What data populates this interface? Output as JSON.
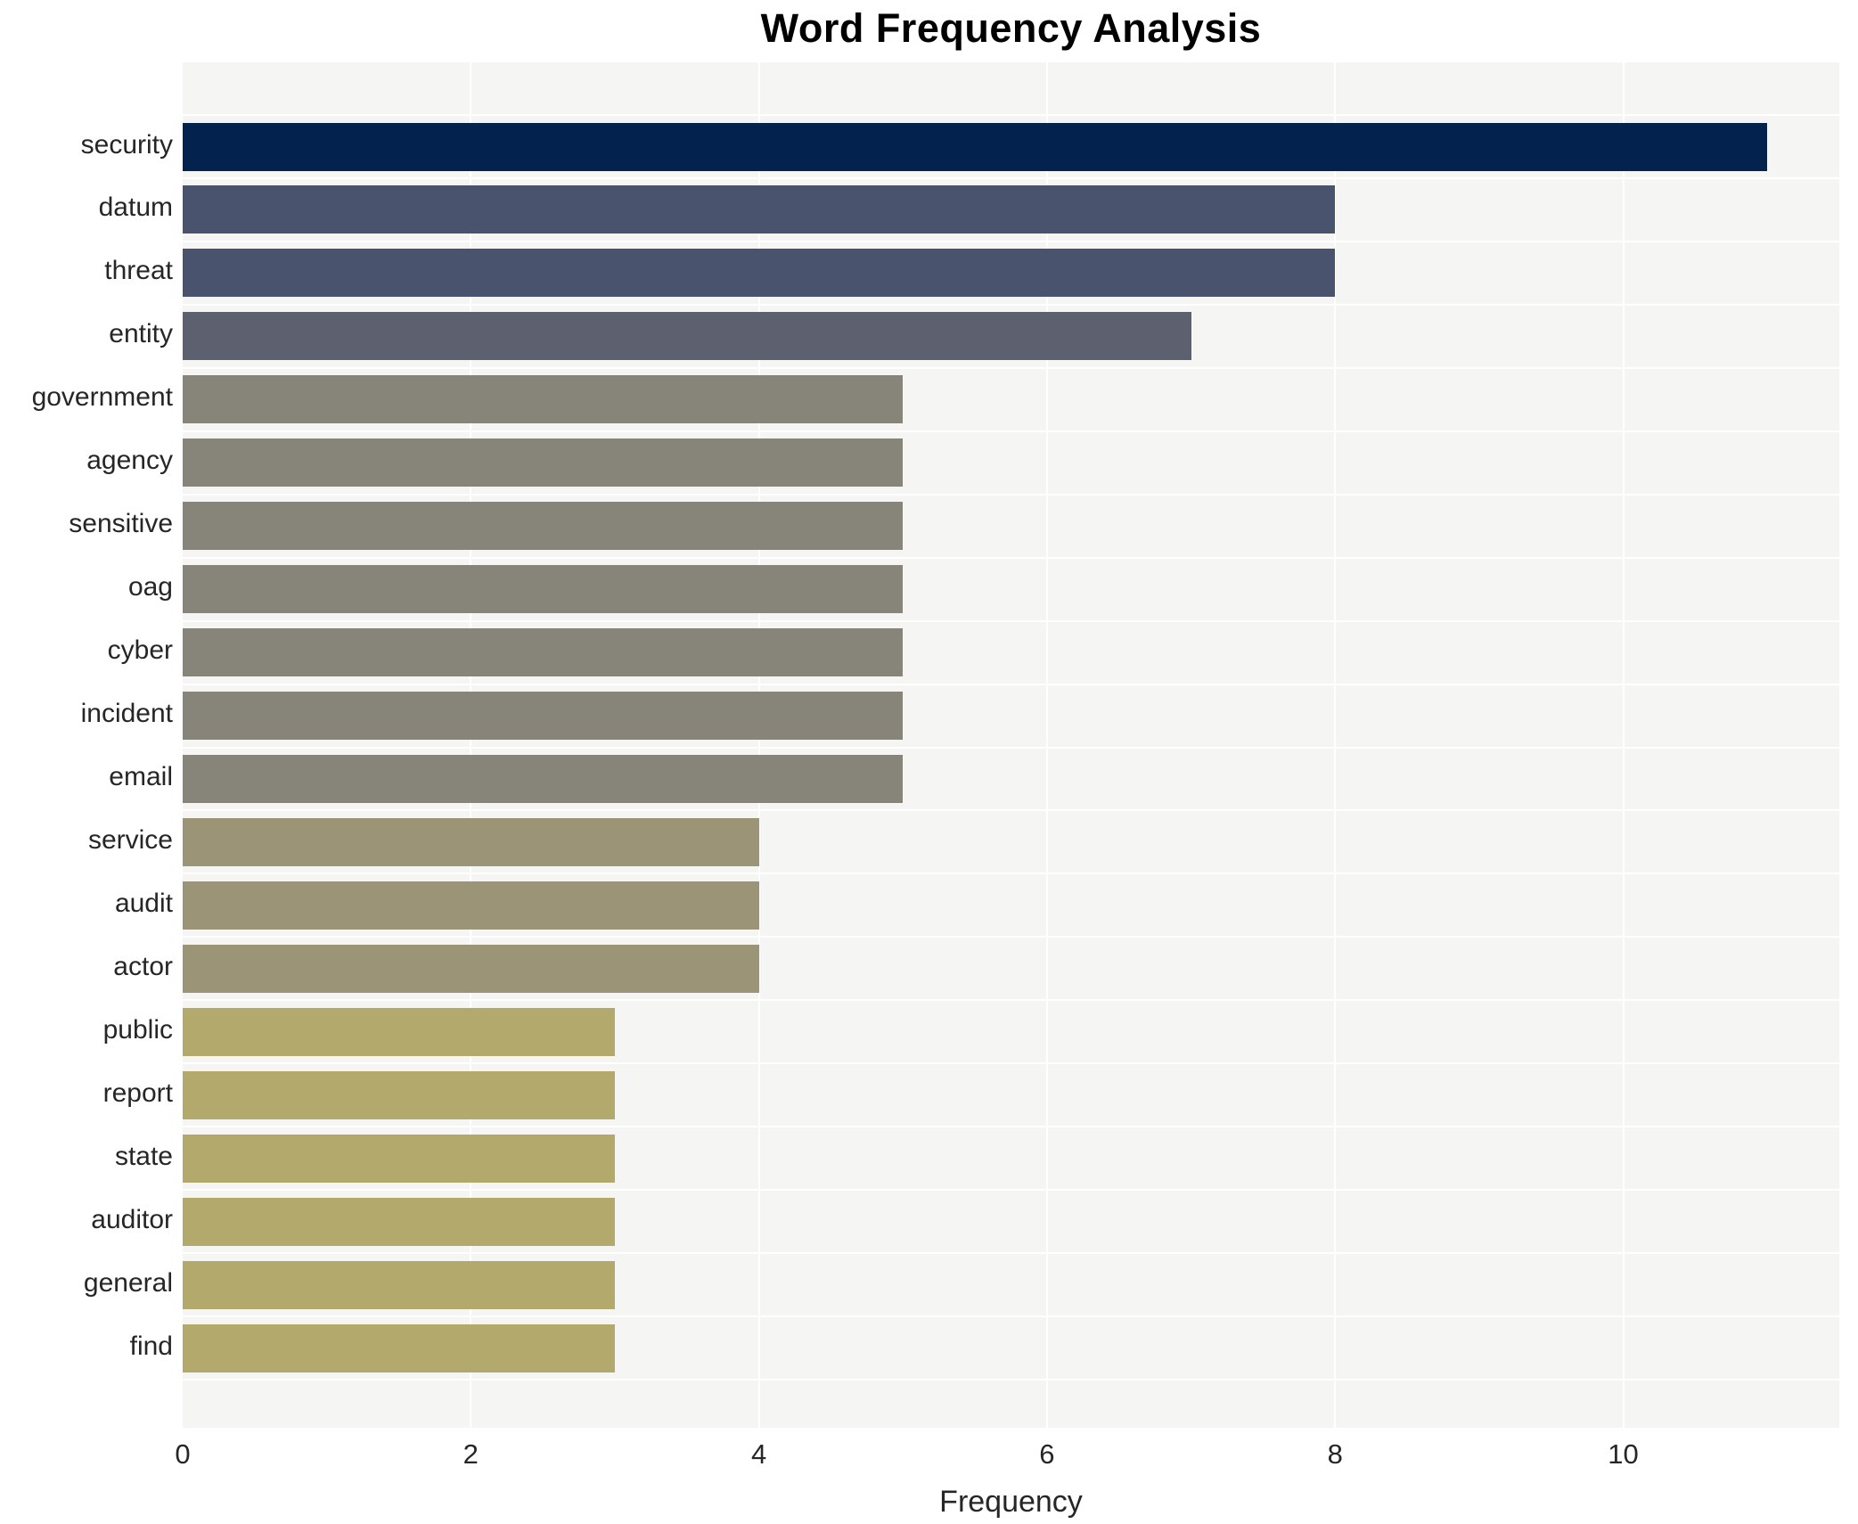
{
  "title": "Word Frequency Analysis",
  "chart_data": {
    "type": "bar",
    "orientation": "horizontal",
    "title": "Word Frequency Analysis",
    "xlabel": "Frequency",
    "ylabel": "",
    "xlim": [
      0,
      11.5
    ],
    "xticks": [
      0,
      2,
      4,
      6,
      8,
      10
    ],
    "grid": true,
    "legend": false,
    "plot_background": "#f5f5f3",
    "grid_color": "#ffffff",
    "categories": [
      "security",
      "datum",
      "threat",
      "entity",
      "government",
      "agency",
      "sensitive",
      "oag",
      "cyber",
      "incident",
      "email",
      "service",
      "audit",
      "actor",
      "public",
      "report",
      "state",
      "auditor",
      "general",
      "find"
    ],
    "values": [
      11,
      8,
      8,
      7,
      5,
      5,
      5,
      5,
      5,
      5,
      5,
      4,
      4,
      4,
      3,
      3,
      3,
      3,
      3,
      3
    ],
    "bar_colors": [
      "#03224e",
      "#4a536e",
      "#4a536e",
      "#5d606e",
      "#87857a",
      "#87857a",
      "#87857a",
      "#87857a",
      "#87857a",
      "#87857a",
      "#87857a",
      "#9b9477",
      "#9b9477",
      "#9b9477",
      "#b4a96c",
      "#b4a96c",
      "#b4a96c",
      "#b4a96c",
      "#b4a96c",
      "#b4a96c"
    ]
  }
}
